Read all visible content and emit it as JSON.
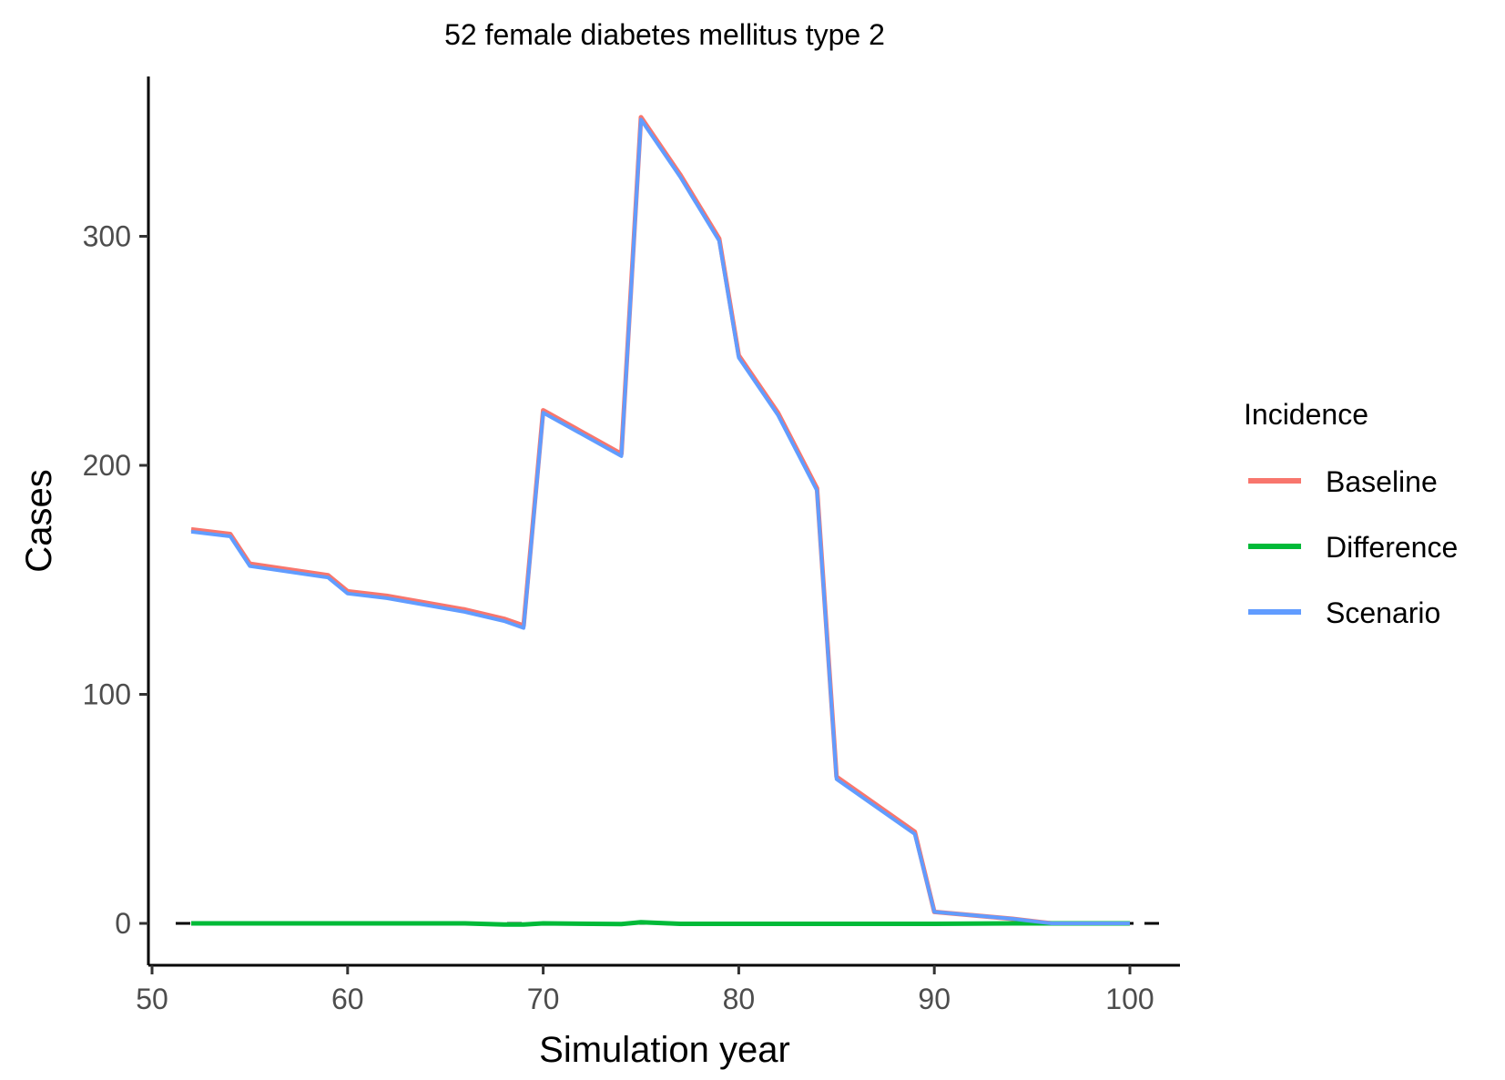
{
  "chart_data": {
    "type": "line",
    "title": "52 female diabetes mellitus type 2",
    "xlabel": "Simulation year",
    "ylabel": "Cases",
    "xlim": [
      50,
      100
    ],
    "ylim": [
      0,
      350
    ],
    "x_ticks": [
      50,
      60,
      70,
      80,
      90,
      100
    ],
    "y_ticks": [
      0,
      100,
      200,
      300
    ],
    "grid": false,
    "legend": {
      "title": "Incidence",
      "placement": "right"
    },
    "reference_line": {
      "y": 0,
      "style": "dashed",
      "color": "#000000"
    },
    "x": [
      52,
      54,
      55,
      59,
      60,
      62,
      66,
      68,
      69,
      70,
      74,
      75,
      77,
      79,
      80,
      82,
      84,
      85,
      89,
      90,
      94,
      96,
      98,
      100
    ],
    "series": [
      {
        "name": "Baseline",
        "color": "#F8766D",
        "values": [
          172,
          170,
          157,
          152,
          145,
          143,
          137,
          133,
          130,
          224,
          205,
          352,
          327,
          299,
          248,
          223,
          190,
          64,
          40,
          5,
          2,
          0,
          0,
          0
        ]
      },
      {
        "name": "Difference",
        "color": "#00BA38",
        "values": [
          0,
          0,
          0,
          0,
          0,
          0,
          0,
          -0.5,
          -0.5,
          0,
          -0.3,
          0.5,
          -0.2,
          -0.2,
          -0.2,
          -0.2,
          -0.2,
          -0.2,
          -0.2,
          -0.2,
          0,
          0,
          0,
          0
        ]
      },
      {
        "name": "Scenario",
        "color": "#619CFF",
        "values": [
          171,
          169,
          156,
          151,
          144,
          142,
          136,
          132,
          129,
          223,
          204,
          351,
          326,
          298,
          247,
          222,
          189,
          63,
          39,
          5,
          2,
          0,
          0,
          0
        ]
      }
    ]
  }
}
